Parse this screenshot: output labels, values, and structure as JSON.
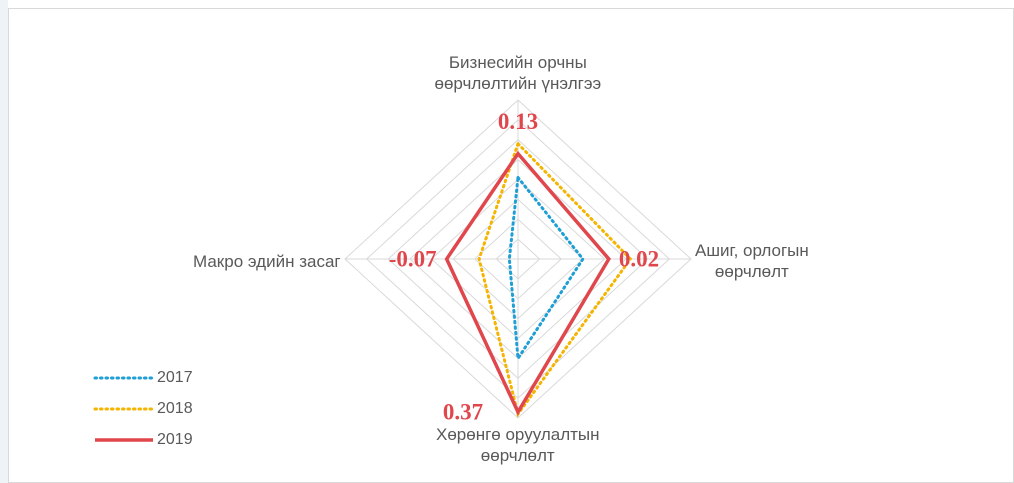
{
  "chart_data": {
    "type": "radar",
    "categories": [
      "Бизнесийн орчны\nөөрчлөлтийн үнэлгээ",
      "Ашиг, орлогын\nөөрчлөлт",
      "Хөрөнгө оруулалтын\nөөрчлөлт",
      "Макро эдийн засаг"
    ],
    "rlim": [
      -0.4,
      0.4
    ],
    "rticks": [
      -0.4,
      -0.3,
      -0.2,
      -0.1,
      0,
      0.1,
      0.2,
      0.3,
      0.4
    ],
    "grid": true,
    "legend": "lower left",
    "series": [
      {
        "name": "2017",
        "color": "#1f9fd6",
        "dash": "dotted",
        "values": [
          0.01,
          -0.1,
          0.1,
          -0.36
        ]
      },
      {
        "name": "2018",
        "color": "#f4b400",
        "dash": "dotted",
        "values": [
          0.18,
          0.12,
          0.38,
          -0.22
        ]
      },
      {
        "name": "2019",
        "color": "#e0474c",
        "dash": "solid",
        "values": [
          0.13,
          0.02,
          0.37,
          -0.07
        ],
        "value_labels": [
          "0.13",
          "0.02",
          "0.37",
          "-0.07"
        ]
      }
    ]
  }
}
